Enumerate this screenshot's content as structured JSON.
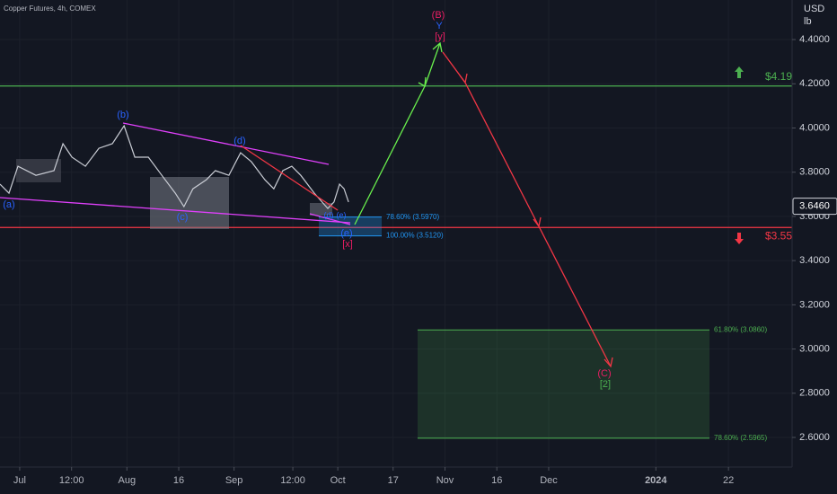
{
  "chart_data": {
    "type": "line",
    "title": "Copper Futures, 4h, COMEX",
    "currency": "USD",
    "unit": "lb",
    "color": "#c9ccd4",
    "x": [
      176.3,
      178.9,
      181.5,
      186.7,
      191.9,
      194.5,
      197.1,
      201.0,
      204.9,
      208.8,
      212.2,
      215.3,
      219.2,
      223.1,
      227.0,
      229.5,
      232.1,
      236.0,
      238.6,
      242.5,
      245.9,
      249.0,
      252.9,
      255.5,
      258.1,
      260.7,
      263.3,
      267.2,
      271.1,
      272.9,
      274.5,
      275.8,
      277.1
    ],
    "values": [
      3.746,
      3.705,
      3.827,
      3.786,
      3.807,
      3.929,
      3.868,
      3.827,
      3.908,
      3.929,
      4.01,
      3.868,
      3.868,
      3.786,
      3.705,
      3.644,
      3.725,
      3.766,
      3.807,
      3.786,
      3.888,
      3.847,
      3.766,
      3.725,
      3.807,
      3.827,
      3.786,
      3.705,
      3.636,
      3.665,
      3.746,
      3.725,
      3.665
    ],
    "xlim": [
      176.3,
      405.4
    ],
    "ylim": [
      2.466,
      4.579
    ],
    "xticks": [
      {
        "value": 182,
        "label": "Jul"
      },
      {
        "value": 197,
        "label": "12:00"
      },
      {
        "value": 213,
        "label": "Aug"
      },
      {
        "value": 228,
        "label": "16"
      },
      {
        "value": 244,
        "label": "Sep"
      },
      {
        "value": 261,
        "label": "12:00"
      },
      {
        "value": 274,
        "label": "Oct"
      },
      {
        "value": 290,
        "label": "17"
      },
      {
        "value": 305,
        "label": "Nov"
      },
      {
        "value": 320,
        "label": "16"
      },
      {
        "value": 335,
        "label": "Dec"
      },
      {
        "value": 366,
        "label": "2024"
      },
      {
        "value": 387,
        "label": "22"
      }
    ],
    "yticks": [
      {
        "value": 2.6,
        "label": "2.6000"
      },
      {
        "value": 2.8,
        "label": "2.8000"
      },
      {
        "value": 3.0,
        "label": "3.0000"
      },
      {
        "value": 3.2,
        "label": "3.2000"
      },
      {
        "value": 3.4,
        "label": "3.4000"
      },
      {
        "value": 3.6,
        "label": "3.6000"
      },
      {
        "value": 3.8,
        "label": "3.8000"
      },
      {
        "value": 4.0,
        "label": "4.0000"
      },
      {
        "value": 4.2,
        "label": "4.2000"
      },
      {
        "value": 4.4,
        "label": "4.4000"
      }
    ],
    "grid": true,
    "last_price": {
      "value": 3.646,
      "label": "3.6460"
    },
    "levels": [
      {
        "value": 4.19,
        "label": "$4.19",
        "color": "#4caf50"
      },
      {
        "value": 3.55,
        "label": "$3.55",
        "color": "#f23645"
      }
    ],
    "fib_zones": [
      {
        "color": "#2196f3",
        "levels": [
          {
            "value": 3.597,
            "label": "78.60% (3.5970)"
          },
          {
            "value": 3.512,
            "label": "100.00% (3.5120)"
          }
        ]
      },
      {
        "color": "#4caf50",
        "levels": [
          {
            "value": 3.086,
            "label": "61.80% (3.0860)"
          },
          {
            "value": 2.5965,
            "label": "78.60% (2.5965)"
          }
        ]
      }
    ],
    "wave_labels": [
      "(a)",
      "(b)",
      "(c)",
      "(d)",
      "(d)",
      "(e)",
      "(e)",
      "[x]",
      "(B)",
      "Y",
      "[y]",
      "(C)",
      "[2]"
    ]
  }
}
